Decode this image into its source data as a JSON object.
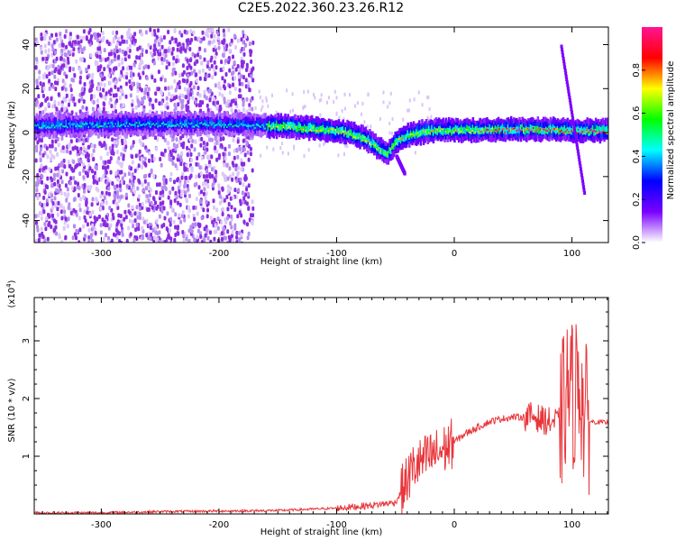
{
  "title": "C2E5.2022.360.23.26.R12",
  "chart_data": [
    {
      "type": "heatmap",
      "xlabel": "Height of straight line (km)",
      "ylabel": "Frequency (Hz)",
      "xlim": [
        -357,
        131
      ],
      "ylim": [
        -50,
        48
      ],
      "xticks": [
        -300,
        -200,
        -100,
        0,
        100
      ],
      "yticks": [
        -40,
        -20,
        0,
        20,
        40
      ],
      "colorbar": {
        "label": "Normalized spectral amplitude",
        "range": [
          0.0,
          1.0
        ],
        "ticks": [
          "0.0",
          "0.2",
          "0.4",
          "0.6",
          "0.8"
        ],
        "colors": [
          "#ffffff",
          "#7a00ff",
          "#0000ff",
          "#00ffff",
          "#00ff00",
          "#ffff00",
          "#ff0000",
          "#ff1493"
        ]
      },
      "ridge": {
        "x": [
          -357,
          -300,
          -250,
          -200,
          -150,
          -120,
          -90,
          -75,
          -65,
          -58,
          -50,
          -40,
          -20,
          0,
          40,
          80,
          95,
          110,
          131
        ],
        "y": [
          3,
          4,
          4,
          4,
          3,
          2,
          0,
          -3,
          -7,
          -10,
          -4,
          -1,
          1,
          1,
          1.5,
          1.5,
          1,
          1,
          1
        ]
      },
      "features": [
        {
          "x": [
            -50,
            -43
          ],
          "y": [
            -10,
            -18
          ]
        },
        {
          "x": [
            90,
            110
          ],
          "y": [
            40,
            -28
          ]
        }
      ]
    },
    {
      "type": "line",
      "xlabel": "Height of straight line (km)",
      "ylabel": "SNR (10 * v/v)",
      "y_multiplier": "(x10",
      "y_multiplier_exp": "4",
      "y_multiplier_close": ")",
      "xlim": [
        -357,
        131
      ],
      "ylim": [
        0,
        3.75
      ],
      "xticks": [
        -300,
        -200,
        -100,
        0,
        100
      ],
      "yticks": [
        1,
        2,
        3
      ],
      "color": "#e8363b",
      "series": [
        {
          "x": [
            -357,
            -300,
            -250,
            -200,
            -150,
            -100,
            -70,
            -50,
            -42,
            -35,
            -20,
            -10,
            0,
            10,
            20,
            30,
            40,
            50,
            60,
            68,
            72,
            80,
            90,
            97,
            102,
            106,
            110,
            115,
            131
          ],
          "y": [
            0.02,
            0.02,
            0.04,
            0.05,
            0.06,
            0.1,
            0.15,
            0.2,
            0.5,
            0.8,
            1.0,
            1.1,
            1.25,
            1.4,
            1.5,
            1.6,
            1.65,
            1.68,
            1.68,
            1.7,
            1.65,
            1.6,
            1.6,
            2.2,
            2.0,
            2.5,
            1.7,
            1.6,
            1.58
          ]
        }
      ]
    }
  ]
}
